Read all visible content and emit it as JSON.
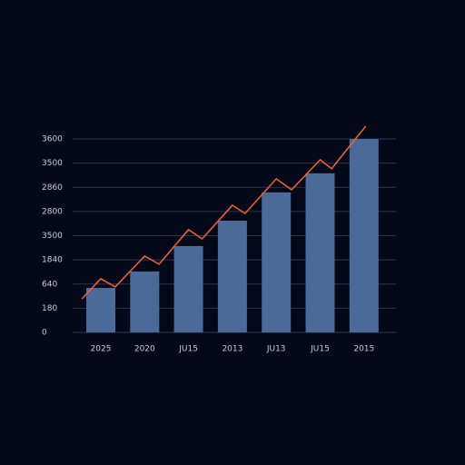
{
  "chart_data": {
    "type": "bar",
    "categories": [
      "2025",
      "2020",
      "JU15",
      "2013",
      "JU13",
      "JU15",
      "2015"
    ],
    "values": [
      1.84,
      2.52,
      3.57,
      4.62,
      5.79,
      6.58,
      8.0
    ],
    "color": "#4b6a99",
    "ylim": [
      0,
      8
    ],
    "yticks": [
      {
        "value": 0,
        "label": "0"
      },
      {
        "value": 1,
        "label": "180"
      },
      {
        "value": 2,
        "label": "640"
      },
      {
        "value": 3,
        "label": "1840"
      },
      {
        "value": 4,
        "label": "3500"
      },
      {
        "value": 5,
        "label": "2800"
      },
      {
        "value": 6,
        "label": "2860"
      },
      {
        "value": 7,
        "label": "3500"
      },
      {
        "value": 8,
        "label": "3600"
      }
    ],
    "grid": true,
    "overlay": {
      "type": "line",
      "color": "#e0643a",
      "x": [
        -0.43,
        0,
        0.33,
        1,
        1.33,
        2,
        2.31,
        3,
        3.29,
        4,
        4.35,
        5,
        5.26,
        6.04
      ],
      "values": [
        1.39,
        2.22,
        1.88,
        3.16,
        2.82,
        4.25,
        3.87,
        5.26,
        4.92,
        6.35,
        5.9,
        7.14,
        6.77,
        8.53
      ]
    }
  }
}
